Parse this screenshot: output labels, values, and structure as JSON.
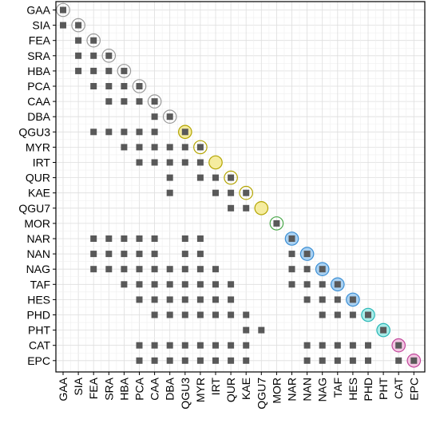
{
  "chart_data": {
    "type": "matrix",
    "title": "",
    "xlabel": "",
    "ylabel": "",
    "grid": true,
    "labels": [
      "GAA",
      "SIA",
      "FEA",
      "SRA",
      "HBA",
      "PCA",
      "CAA",
      "DBA",
      "QGU3",
      "MYR",
      "IRT",
      "QUR",
      "KAE",
      "QGU7",
      "MOR",
      "NAR",
      "NAN",
      "NAG",
      "TAF",
      "HES",
      "PHD",
      "PHT",
      "CAT",
      "EPC"
    ],
    "diagonal_groups": [
      "grey",
      "grey",
      "grey",
      "grey",
      "grey",
      "grey",
      "grey",
      "grey",
      "yellow",
      "yellow",
      "yellow",
      "yellow",
      "yellow",
      "yellow",
      "green",
      "blue",
      "blue",
      "blue",
      "blue",
      "blue",
      "cyan",
      "cyan",
      "pink",
      "pink"
    ],
    "group_colors": {
      "grey": {
        "stroke": "#999999",
        "fill": "none"
      },
      "yellow": {
        "stroke": "#b3a400",
        "fill": "#f5ec9f"
      },
      "green": {
        "stroke": "#4aa84a",
        "fill": "none"
      },
      "blue": {
        "stroke": "#3c8fd4",
        "fill": "#a9d1f2"
      },
      "cyan": {
        "stroke": "#2ab7b7",
        "fill": "#a8ece8"
      },
      "pink": {
        "stroke": "#c2459b",
        "fill": "#f2c6e2"
      }
    },
    "filled_diagonal": [
      "QGU3",
      "IRT",
      "QGU7",
      "NAR",
      "NAN",
      "NAG",
      "TAF",
      "HES",
      "PHD",
      "PHT",
      "CAT",
      "EPC"
    ],
    "marker_color": "#595959",
    "rows": {
      "GAA": [
        "GAA"
      ],
      "SIA": [
        "GAA",
        "SIA"
      ],
      "FEA": [
        "SIA",
        "FEA"
      ],
      "SRA": [
        "SIA",
        "FEA",
        "SRA"
      ],
      "HBA": [
        "SIA",
        "FEA",
        "SRA",
        "HBA"
      ],
      "PCA": [
        "FEA",
        "SRA",
        "HBA",
        "PCA"
      ],
      "CAA": [
        "SRA",
        "HBA",
        "PCA",
        "CAA"
      ],
      "DBA": [
        "CAA",
        "DBA"
      ],
      "QGU3": [
        "FEA",
        "SRA",
        "HBA",
        "PCA",
        "CAA",
        "QGU3"
      ],
      "MYR": [
        "HBA",
        "PCA",
        "CAA",
        "DBA",
        "QGU3",
        "MYR"
      ],
      "IRT": [
        "PCA",
        "CAA",
        "DBA",
        "QGU3",
        "MYR",
        "IRT"
      ],
      "QUR": [
        "DBA",
        "MYR",
        "IRT",
        "QUR"
      ],
      "KAE": [
        "DBA",
        "IRT",
        "QUR",
        "KAE"
      ],
      "QGU7": [
        "QUR",
        "KAE",
        "QGU7"
      ],
      "MOR": [
        "MOR"
      ],
      "NAR": [
        "FEA",
        "SRA",
        "HBA",
        "PCA",
        "CAA",
        "QGU3",
        "MYR",
        "NAR"
      ],
      "NAN": [
        "FEA",
        "SRA",
        "HBA",
        "PCA",
        "CAA",
        "QGU3",
        "MYR",
        "NAR",
        "NAN"
      ],
      "NAG": [
        "FEA",
        "SRA",
        "HBA",
        "PCA",
        "CAA",
        "DBA",
        "QGU3",
        "MYR",
        "IRT",
        "NAR",
        "NAN",
        "NAG"
      ],
      "TAF": [
        "HBA",
        "PCA",
        "CAA",
        "DBA",
        "QGU3",
        "MYR",
        "IRT",
        "QUR",
        "NAR",
        "NAN",
        "NAG",
        "TAF"
      ],
      "HES": [
        "PCA",
        "CAA",
        "DBA",
        "QGU3",
        "MYR",
        "IRT",
        "QUR",
        "NAN",
        "NAG",
        "TAF",
        "HES"
      ],
      "PHD": [
        "CAA",
        "DBA",
        "QGU3",
        "MYR",
        "IRT",
        "QUR",
        "KAE",
        "NAG",
        "TAF",
        "HES",
        "PHD"
      ],
      "PHT": [
        "KAE",
        "QGU7",
        "PHT"
      ],
      "CAT": [
        "PCA",
        "CAA",
        "DBA",
        "QGU3",
        "MYR",
        "IRT",
        "QUR",
        "KAE",
        "NAN",
        "NAG",
        "TAF",
        "HES",
        "PHD",
        "CAT"
      ],
      "EPC": [
        "PCA",
        "CAA",
        "DBA",
        "QGU3",
        "MYR",
        "IRT",
        "QUR",
        "KAE",
        "NAN",
        "NAG",
        "TAF",
        "HES",
        "PHD",
        "CAT",
        "EPC"
      ]
    }
  }
}
